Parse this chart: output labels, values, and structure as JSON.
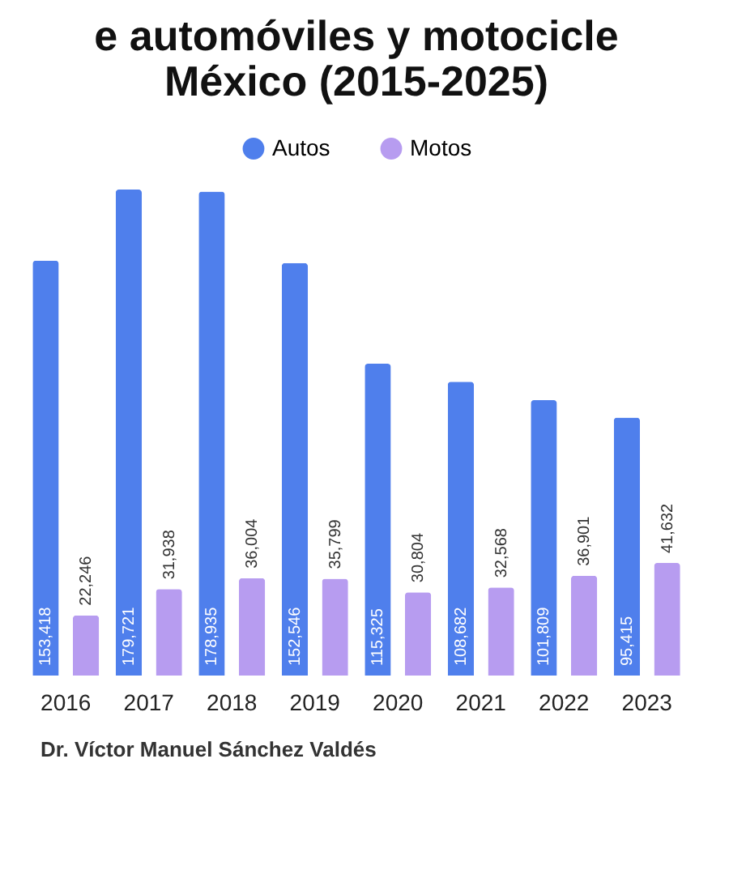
{
  "chart_data": {
    "type": "bar",
    "title": "e automóviles y motocicle\nMéxico (2015-2025)",
    "categories": [
      "2016",
      "2017",
      "2018",
      "2019",
      "2020",
      "2021",
      "2022",
      "2023"
    ],
    "series": [
      {
        "name": "Autos",
        "color": "#4f7fec",
        "values": [
          153418,
          179721,
          178935,
          152546,
          115325,
          108682,
          101809,
          95415
        ],
        "value_labels": [
          "153,418",
          "179,721",
          "178,935",
          "152,546",
          "115,325",
          "108,682",
          "101,809",
          "95,415"
        ]
      },
      {
        "name": "Motos",
        "color": "#b79cf0",
        "values": [
          22246,
          31938,
          36004,
          35799,
          30804,
          32568,
          36901,
          41632
        ],
        "value_labels": [
          "22,246",
          "31,938",
          "36,004",
          "35,799",
          "30,804",
          "32,568",
          "36,901",
          "41,632"
        ]
      }
    ],
    "legend": "top",
    "grid": false,
    "annotations": [
      "Dr. Víctor Manuel Sánchez Valdés"
    ]
  }
}
